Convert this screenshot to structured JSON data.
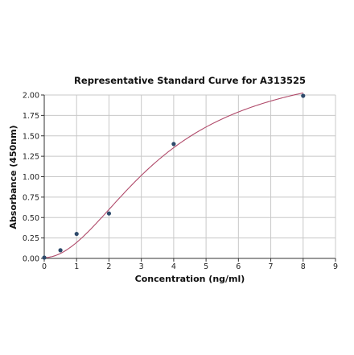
{
  "chart_data": {
    "type": "scatter",
    "title": "Representative Standard Curve for A313525",
    "xlabel": "Concentration (ng/ml)",
    "ylabel": "Absorbance (450nm)",
    "xlim": [
      0,
      9
    ],
    "ylim": [
      0,
      2
    ],
    "x_ticks": [
      "0",
      "1",
      "2",
      "3",
      "4",
      "5",
      "6",
      "7",
      "8",
      "9"
    ],
    "y_ticks": [
      "0.00",
      "0.25",
      "0.50",
      "0.75",
      "1.00",
      "1.25",
      "1.50",
      "1.75",
      "2.00"
    ],
    "grid": true,
    "legend": "none",
    "series": [
      {
        "type": "scatter",
        "x": [
          0,
          0.5,
          1,
          2,
          4,
          8
        ],
        "y": [
          0.01,
          0.1,
          0.3,
          0.55,
          1.4,
          1.99
        ],
        "color": "#2e4a6b"
      },
      {
        "type": "line",
        "fit": "4PL",
        "color": "#b04a6a"
      }
    ]
  }
}
